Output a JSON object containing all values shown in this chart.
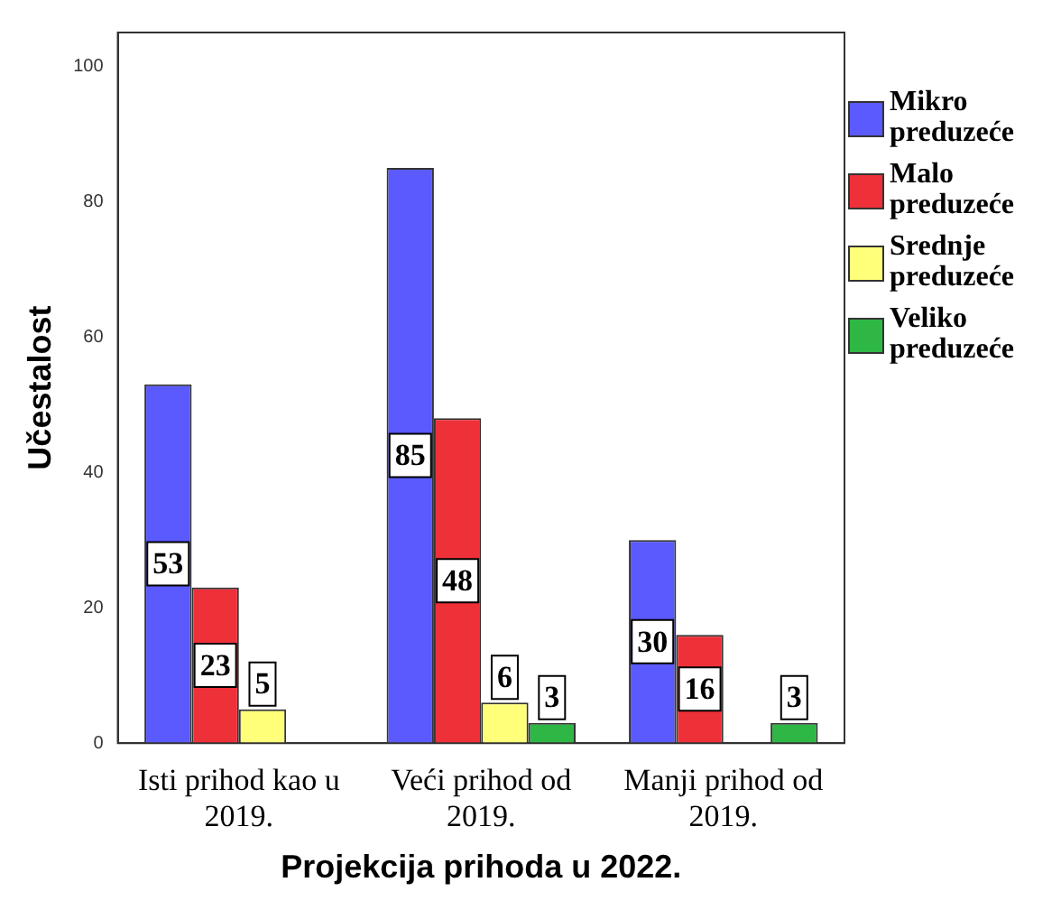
{
  "chart_data": {
    "type": "bar",
    "xlabel": "Projekcija prihoda u 2022.",
    "ylabel": "Učestalost",
    "categories": [
      "Isti prihod kao u 2019.",
      "Veći prihod od 2019.",
      "Manji prihod od 2019."
    ],
    "series": [
      {
        "name": "Mikro preduzeće",
        "color": "#5a5aff",
        "values": [
          53,
          85,
          30
        ]
      },
      {
        "name": "Malo preduzeće",
        "color": "#ee3038",
        "values": [
          23,
          48,
          16
        ]
      },
      {
        "name": "Srednje preduzeće",
        "color": "#ffff7a",
        "values": [
          5,
          6,
          null
        ]
      },
      {
        "name": "Veliko preduzeće",
        "color": "#2eb744",
        "values": [
          null,
          3,
          3
        ]
      }
    ],
    "ylim": [
      0,
      105
    ],
    "yticks": [
      0,
      20,
      40,
      60,
      80,
      100
    ],
    "grid": false,
    "legend": "right",
    "data_labels": true
  }
}
